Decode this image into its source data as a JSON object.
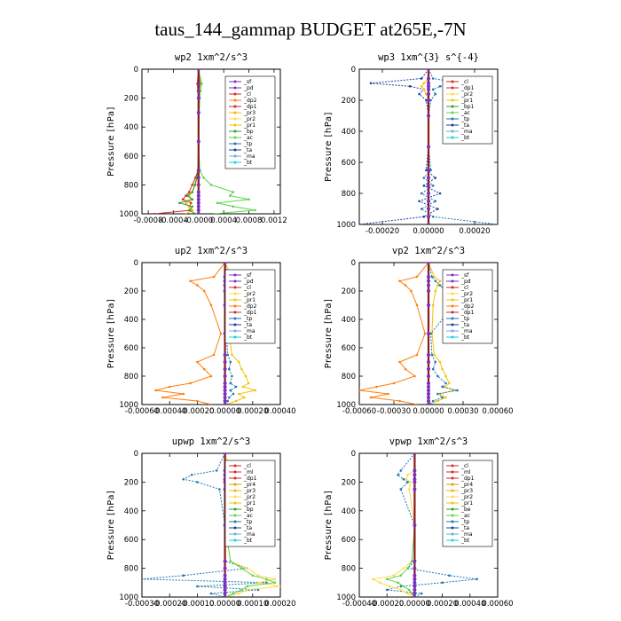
{
  "figure_title": "taus_144_gammap  BUDGET at265E,-7N",
  "colors": {
    "sf": "#7b2fbe",
    "pd": "#7b2fbe",
    "cl": "#d62728",
    "ml": "#d62728",
    "dp1": "#d62728",
    "dp2": "#ff7f0e",
    "dp4": "#ff7f0e",
    "pr1": "#f4c20d",
    "pr2": "#ffd84d",
    "pr3": "#ffb000",
    "pr4": "#d6a000",
    "bp": "#2ca02c",
    "bp1": "#2ca02c",
    "ac": "#5bd64a",
    "be": "#2ca02c",
    "tp": "#1f77b4",
    "ta": "#1f3fa0",
    "ma": "#6fa8dc",
    "bt": "#17d0e0"
  },
  "chart_data": [
    {
      "type": "line",
      "title": "wp2   1xm^2/s^3",
      "ylabel": "Pressure [hPa]",
      "ylim": [
        1000,
        0
      ],
      "xlim": [
        -0.0009,
        0.0013
      ],
      "xticks": [
        -0.0008,
        -0.0004,
        0.0,
        0.0004,
        0.0008,
        0.0012
      ],
      "xtick_labels": [
        "-0.0008",
        "-0.0004",
        "-0.0000",
        "0.0004",
        "0.0008",
        "0.0012"
      ],
      "yticks": [
        0,
        200,
        400,
        600,
        800,
        1000
      ],
      "legend": [
        "_sf",
        "_pd",
        "_cl",
        "_dp2",
        "_dp1",
        "_pr3",
        "_pr2",
        "_pr1",
        "_bp",
        "_ac",
        "_tp",
        "_ta",
        "_ma",
        "_bt"
      ],
      "legend_position": "top-right",
      "pressure": [
        0,
        100,
        150,
        200,
        300,
        500,
        700,
        750,
        800,
        850,
        875,
        900,
        925,
        950,
        975,
        1000
      ],
      "series": [
        {
          "key": "ac",
          "values": [
            0,
            5e-05,
            3e-05,
            2e-05,
            1e-05,
            0.0,
            2e-05,
            8e-05,
            0.0002,
            0.00055,
            0.0005,
            0.0008,
            0.0003,
            0.00055,
            0.0009,
            0.00025
          ]
        },
        {
          "key": "dp1",
          "values": [
            0,
            -2e-05,
            -1e-05,
            0.0,
            0.0,
            0.0,
            -1e-05,
            -5e-05,
            -0.0001,
            -0.00015,
            -0.0002,
            -0.00025,
            -0.00012,
            -0.00015,
            -0.0001,
            -0.0007
          ]
        },
        {
          "key": "pr3",
          "values": [
            0,
            3e-05,
            1e-05,
            0.0,
            0.0,
            0.0,
            0.0,
            -2e-05,
            -5e-05,
            -0.0001,
            -0.00015,
            -0.0001,
            -0.0002,
            -0.00015,
            -0.0001,
            -0.0002
          ]
        },
        {
          "key": "bp",
          "values": [
            0,
            2e-05,
            1e-05,
            0.0,
            0.0,
            0.0,
            -1e-05,
            -3e-05,
            -6e-05,
            -0.0001,
            -0.00018,
            -0.0001,
            -0.0003,
            -0.0001,
            -0.00015,
            -5e-05
          ]
        },
        {
          "key": "pd",
          "values": [
            0,
            0.0,
            0.0,
            0.0,
            0.0,
            0.0,
            0.0,
            0.0,
            0.0,
            0.0,
            0.0,
            0.0,
            0.0,
            0.0,
            0.0,
            0.0
          ]
        }
      ]
    },
    {
      "type": "line",
      "title": "wp3   1xm^{3} s^{-4}",
      "ylabel": "Pressure [hPa]",
      "ylim": [
        1000,
        0
      ],
      "xlim": [
        -0.0003,
        0.0003
      ],
      "xticks": [
        -0.0002,
        0.0,
        0.0002
      ],
      "xtick_labels": [
        "-0.00020",
        "0.00000",
        "0.00020"
      ],
      "yticks": [
        0,
        200,
        400,
        600,
        800,
        1000
      ],
      "legend": [
        "_cl",
        "_dp1",
        "_pr2",
        "_pr1",
        "_bp1",
        "_ac",
        "_tp",
        "_ta",
        "_ma",
        "_bt"
      ],
      "legend_position": "top-right",
      "pressure": [
        0,
        60,
        90,
        110,
        130,
        160,
        200,
        300,
        500,
        650,
        700,
        750,
        800,
        850,
        900,
        950,
        1000
      ],
      "series": [
        {
          "key": "ta",
          "values": [
            0,
            -3e-05,
            -0.00025,
            -8e-05,
            -2e-05,
            -4e-05,
            -1e-05,
            0.0,
            0.0,
            -1e-05,
            3e-05,
            -2e-05,
            5e-05,
            -4e-05,
            4e-05,
            -2e-05,
            -0.0003
          ]
        },
        {
          "key": "tp",
          "values": [
            0,
            2e-05,
            0.00015,
            5e-05,
            2e-05,
            3e-05,
            1e-05,
            0.0,
            0.0,
            1e-05,
            -2e-05,
            2e-05,
            -3e-05,
            3e-05,
            -3e-05,
            2e-05,
            0.0003
          ]
        },
        {
          "key": "pr1",
          "values": [
            0,
            0.0,
            -2e-05,
            -3e-05,
            -2e-05,
            -1e-05,
            0.0,
            0.0,
            0.0,
            0.0,
            0.0,
            0.0,
            0.0,
            0.0,
            0.0,
            0.0,
            0.0
          ]
        },
        {
          "key": "cl",
          "values": [
            0,
            0.0,
            0.0,
            0.0,
            0.0,
            0.0,
            0.0,
            0.0,
            0.0,
            0.0,
            0.0,
            0.0,
            0.0,
            0.0,
            0.0,
            0.0,
            0.0
          ]
        }
      ]
    },
    {
      "type": "line",
      "title": "up2   1xm^2/s^3",
      "ylabel": "Pressure [hPa]",
      "ylim": [
        1000,
        0
      ],
      "xlim": [
        -0.0006,
        0.0004
      ],
      "xticks": [
        -0.0006,
        -0.0004,
        -0.0002,
        0.0,
        0.0002,
        0.0004
      ],
      "xtick_labels": [
        "-0.00060",
        "-0.00040",
        "-0.00020",
        "0.00000",
        "0.00020",
        "0.00040"
      ],
      "yticks": [
        0,
        200,
        400,
        600,
        800,
        1000
      ],
      "legend": [
        "_sf",
        "_pd",
        "_cl",
        "_pr2",
        "_pr1",
        "_dp2",
        "_dp1",
        "_tp",
        "_ta",
        "_ma",
        "_bt"
      ],
      "legend_position": "top-right",
      "pressure": [
        0,
        100,
        130,
        160,
        200,
        300,
        500,
        650,
        700,
        750,
        800,
        850,
        875,
        900,
        925,
        950,
        975,
        1000
      ],
      "series": [
        {
          "key": "dp2",
          "values": [
            0,
            -8e-05,
            -0.00025,
            -0.0002,
            -0.00015,
            -0.0001,
            -3e-05,
            -8e-05,
            -0.0002,
            -0.00015,
            -0.0001,
            -0.00025,
            -0.0004,
            -0.0005,
            -0.0003,
            -0.00045,
            -0.0002,
            -0.0001
          ]
        },
        {
          "key": "pr1",
          "values": [
            0,
            5e-05,
            8e-05,
            6e-05,
            5e-05,
            3e-05,
            3e-05,
            5e-05,
            0.0001,
            0.00012,
            0.00015,
            0.00017,
            0.00013,
            0.00022,
            0.0001,
            0.00014,
            8e-05,
            0.0
          ]
        },
        {
          "key": "tp",
          "values": [
            0,
            2e-05,
            4e-05,
            6e-05,
            8e-05,
            0.00012,
            1e-05,
            2e-05,
            4e-05,
            3e-05,
            5e-05,
            4e-05,
            8e-05,
            4e-05,
            6e-05,
            3e-05,
            2e-05,
            0.0
          ]
        },
        {
          "key": "pd",
          "values": [
            0,
            0.0,
            0.0,
            0.0,
            0.0,
            0.0,
            0.0,
            0.0,
            0.0,
            0.0,
            0.0,
            0.0,
            0.0,
            0.0,
            0.0,
            0.0,
            0.0,
            0.0
          ]
        }
      ]
    },
    {
      "type": "line",
      "title": "vp2   1xm^2/s^3",
      "ylabel": "Pressure [hPa]",
      "ylim": [
        1000,
        0
      ],
      "xlim": [
        -0.0006,
        0.0006
      ],
      "xticks": [
        -0.0006,
        -0.0003,
        0.0,
        0.0003,
        0.0006
      ],
      "xtick_labels": [
        "-0.00060",
        "-0.00030",
        "0.00000",
        "0.00030",
        "0.00060"
      ],
      "yticks": [
        0,
        200,
        400,
        600,
        800,
        1000
      ],
      "legend": [
        "_sf",
        "_pd",
        "_cl",
        "_pr2",
        "_pr1",
        "_dp2",
        "_dp1",
        "_tp",
        "_ta",
        "_ma",
        "_bt"
      ],
      "legend_position": "top-right",
      "pressure": [
        0,
        100,
        130,
        160,
        200,
        300,
        500,
        650,
        700,
        750,
        800,
        850,
        875,
        900,
        925,
        950,
        975,
        1000
      ],
      "series": [
        {
          "key": "dp2",
          "values": [
            0,
            -0.0001,
            -0.00025,
            -0.0002,
            -0.00015,
            -0.0001,
            -3e-05,
            -0.0001,
            -0.00025,
            -0.0002,
            -0.00012,
            -0.0003,
            -0.00045,
            -0.0006,
            -0.00035,
            -0.0005,
            -0.00025,
            -0.0001
          ]
        },
        {
          "key": "pr1",
          "values": [
            0,
            5e-05,
            0.0001,
            8e-05,
            6e-05,
            4e-05,
            3e-05,
            5e-05,
            0.0001,
            0.00012,
            0.00015,
            0.00018,
            0.00014,
            0.00022,
            0.0001,
            0.00015,
            8e-05,
            0.0
          ]
        },
        {
          "key": "tp",
          "values": [
            0,
            3e-05,
            6e-05,
            0.0001,
            0.00015,
            0.00022,
            2e-05,
            3e-05,
            6e-05,
            4e-05,
            8e-05,
            0.00015,
            0.00012,
            0.00025,
            8e-05,
            0.00012,
            4e-05,
            0.0
          ]
        },
        {
          "key": "pd",
          "values": [
            0,
            0.0,
            0.0,
            0.0,
            0.0,
            0.0,
            0.0,
            0.0,
            0.0,
            0.0,
            0.0,
            0.0,
            0.0,
            0.0,
            0.0,
            0.0,
            0.0,
            0.0
          ]
        }
      ]
    },
    {
      "type": "line",
      "title": "upwp   1xm^2/s^3",
      "ylabel": "Pressure [hPa]",
      "ylim": [
        1000,
        0
      ],
      "xlim": [
        -0.0003,
        0.0002
      ],
      "xticks": [
        -0.0003,
        -0.0002,
        -0.0001,
        0.0,
        0.0001,
        0.0002
      ],
      "xtick_labels": [
        "-0.00030",
        "-0.00020",
        "-0.00010",
        "0.00000",
        "0.00010",
        "0.00020"
      ],
      "yticks": [
        0,
        200,
        400,
        600,
        800,
        1000
      ],
      "legend": [
        "_cl",
        "_ml",
        "_dp1",
        "_pr4",
        "_pr3",
        "_pr2",
        "_pr1",
        "_bp",
        "_ac",
        "_tp",
        "_ta",
        "_ma",
        "_bt"
      ],
      "legend_position": "top-right",
      "pressure": [
        0,
        120,
        150,
        180,
        200,
        250,
        500,
        750,
        800,
        850,
        875,
        900,
        925,
        950,
        975,
        1000
      ],
      "series": [
        {
          "key": "tp",
          "values": [
            0,
            -3e-05,
            -0.00012,
            -0.00015,
            -0.0001,
            -2e-05,
            0.0,
            0.0,
            8e-05,
            -0.00015,
            -0.0003,
            0.00015,
            -0.0001,
            0.00012,
            -5e-05,
            0.0
          ]
        },
        {
          "key": "pr2",
          "values": [
            0,
            2e-05,
            4e-05,
            6e-05,
            3e-05,
            1e-05,
            0.0,
            2e-05,
            8e-05,
            0.00012,
            0.00018,
            0.00012,
            0.0002,
            8e-05,
            5e-05,
            0.0
          ]
        },
        {
          "key": "ac",
          "values": [
            0,
            0.0,
            0.0,
            0.0,
            0.0,
            0.0,
            0.0,
            2e-05,
            6e-05,
            0.0001,
            0.00015,
            0.00018,
            8e-05,
            6e-05,
            3e-05,
            0.0
          ]
        },
        {
          "key": "ml",
          "values": [
            0,
            0.0,
            0.0,
            0.0,
            0.0,
            0.0,
            0.0,
            0.0,
            0.0,
            0.0,
            0.0,
            0.0,
            0.0,
            0.0,
            0.0,
            0.0
          ]
        }
      ]
    },
    {
      "type": "line",
      "title": "vpwp   1xm^2/s^3",
      "ylabel": "Pressure [hPa]",
      "ylim": [
        1000,
        0
      ],
      "xlim": [
        -0.0004,
        0.0006
      ],
      "xticks": [
        -0.0004,
        -0.0002,
        0.0,
        0.0002,
        0.0004,
        0.0006
      ],
      "xtick_labels": [
        "-0.00040",
        "-0.00020",
        "0.00000",
        "0.00020",
        "0.00040",
        "0.00060"
      ],
      "yticks": [
        0,
        200,
        400,
        600,
        800,
        1000
      ],
      "legend": [
        "_cl",
        "_ml",
        "_dp1",
        "_pr4",
        "_pr3",
        "_pr2",
        "_pr1",
        "_be",
        "_ac",
        "_tp",
        "_ta",
        "_ma",
        "_bt"
      ],
      "legend_position": "top-right",
      "pressure": [
        0,
        120,
        150,
        180,
        200,
        250,
        500,
        750,
        800,
        850,
        875,
        900,
        925,
        950,
        975,
        1000
      ],
      "series": [
        {
          "key": "tp",
          "values": [
            0,
            -0.0001,
            -0.00012,
            -8e-05,
            -5e-05,
            -0.0001,
            0.0,
            0.0,
            -5e-05,
            0.00025,
            0.00045,
            0.0002,
            -0.0001,
            -0.0002,
            5e-05,
            0.0
          ]
        },
        {
          "key": "pr2",
          "values": [
            0,
            0.0,
            -5e-05,
            -6e-05,
            -3e-05,
            -4e-05,
            0.0,
            -2e-05,
            -8e-05,
            -0.00015,
            -0.0003,
            -0.00025,
            -0.00018,
            -0.0001,
            -5e-05,
            0.0
          ]
        },
        {
          "key": "ac",
          "values": [
            0,
            0.0,
            0.0,
            0.0,
            0.0,
            0.0,
            0.0,
            -2e-05,
            -5e-05,
            -0.0001,
            -0.0002,
            -0.00012,
            -8e-05,
            -4e-05,
            -2e-05,
            0.0
          ]
        },
        {
          "key": "ml",
          "values": [
            0,
            0.0,
            0.0,
            0.0,
            0.0,
            0.0,
            0.0,
            0.0,
            0.0,
            0.0,
            0.0,
            0.0,
            0.0,
            0.0,
            0.0,
            0.0
          ]
        }
      ]
    }
  ]
}
